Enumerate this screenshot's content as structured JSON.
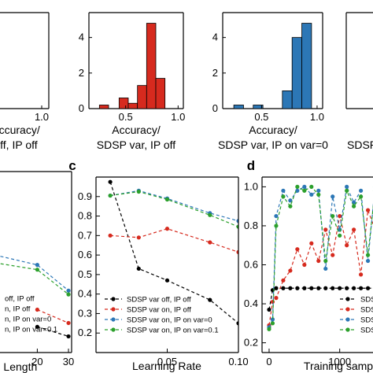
{
  "chart_data": [
    {
      "id": "hist1",
      "type": "bar",
      "xlabel_lines": [
        "Accuracy/",
        "off, IP off"
      ],
      "xticks": [
        "1.0"
      ],
      "bars": [],
      "ylim": [
        0,
        5
      ]
    },
    {
      "id": "hist2",
      "type": "bar",
      "color": "#d62a1e",
      "xlim": [
        0.15,
        1.05
      ],
      "ylim": [
        0,
        5.4
      ],
      "xticks": [
        {
          "v": 0.5,
          "label": "0.5"
        },
        {
          "v": 1.0,
          "label": "1.0"
        }
      ],
      "yticks": [
        {
          "v": 0,
          "label": "0"
        },
        {
          "v": 2,
          "label": "2"
        },
        {
          "v": 4,
          "label": "4"
        }
      ],
      "bin_width": 0.0875,
      "bars": [
        {
          "x0": 0.25,
          "count": 0.2
        },
        {
          "x0": 0.4375,
          "count": 0.6
        },
        {
          "x0": 0.525,
          "count": 0.3
        },
        {
          "x0": 0.6125,
          "count": 1.3
        },
        {
          "x0": 0.7,
          "count": 4.8
        },
        {
          "x0": 0.7875,
          "count": 1.7
        }
      ],
      "xlabel_lines": [
        "Accuracy/",
        "SDSP var, IP off"
      ]
    },
    {
      "id": "hist3",
      "type": "bar",
      "color": "#2c77b6",
      "xlim": [
        0.15,
        1.05
      ],
      "ylim": [
        0,
        5.4
      ],
      "xticks": [
        {
          "v": 0.5,
          "label": "0.5"
        },
        {
          "v": 1.0,
          "label": "1.0"
        }
      ],
      "yticks": [
        {
          "v": 0,
          "label": "0"
        },
        {
          "v": 2,
          "label": "2"
        },
        {
          "v": 4,
          "label": "4"
        }
      ],
      "bin_width": 0.0875,
      "bars": [
        {
          "x0": 0.25,
          "count": 0.2
        },
        {
          "x0": 0.425,
          "count": 0.2
        },
        {
          "x0": 0.6875,
          "count": 1.0
        },
        {
          "x0": 0.775,
          "count": 4.0
        },
        {
          "x0": 0.8625,
          "count": 4.8
        }
      ],
      "xlabel_lines": [
        "Accuracy/",
        "SDSP var, IP on var=0"
      ]
    },
    {
      "id": "hist4",
      "type": "bar",
      "xlabel_lines": [
        "SDSP"
      ]
    },
    {
      "id": "line_b",
      "type": "line",
      "xlabel": "e Length",
      "xlim": [
        3,
        31
      ],
      "ylim": [
        0.1,
        1.05
      ],
      "xticks": [
        {
          "v": 20,
          "label": "20"
        },
        {
          "v": 30,
          "label": "30"
        }
      ],
      "series": [
        {
          "name": "off, IP off",
          "color": "#000000",
          "x": [
            20,
            30
          ],
          "y": [
            0.235,
            0.185
          ]
        },
        {
          "name": "n, IP off",
          "color": "#d62a1e",
          "x": [
            20,
            30
          ],
          "y": [
            0.325,
            0.255
          ]
        },
        {
          "name": "n, IP on var=0",
          "color": "#2c77b6",
          "x": [
            3,
            20,
            30
          ],
          "y": [
            0.625,
            0.56,
            0.425
          ]
        },
        {
          "name": "n, IP on var=0.1",
          "color": "#2ca02c",
          "x": [
            3,
            20,
            30
          ],
          "y": [
            0.58,
            0.535,
            0.405
          ]
        }
      ]
    },
    {
      "id": "line_c",
      "type": "line",
      "panel_letter": "c",
      "xlabel": "Learning Rate",
      "xlim": [
        0.0,
        0.1
      ],
      "ylim": [
        0.1,
        1.0
      ],
      "xticks": [
        {
          "v": 0.05,
          "label": "0.05"
        },
        {
          "v": 0.1,
          "label": "0.10"
        }
      ],
      "yticks": [
        {
          "v": 0.2,
          "label": "0.2"
        },
        {
          "v": 0.3,
          "label": "0.3"
        },
        {
          "v": 0.4,
          "label": "0.4"
        },
        {
          "v": 0.5,
          "label": "0.5"
        },
        {
          "v": 0.6,
          "label": "0.6"
        },
        {
          "v": 0.7,
          "label": "0.7"
        },
        {
          "v": 0.8,
          "label": "0.8"
        },
        {
          "v": 0.9,
          "label": "0.9"
        }
      ],
      "series": [
        {
          "name": "SDSP var off, IP off",
          "color": "#000000",
          "x": [
            0.01,
            0.03,
            0.05,
            0.08,
            0.1
          ],
          "y": [
            0.975,
            0.53,
            0.47,
            0.37,
            0.25
          ]
        },
        {
          "name": "SDSP var on, IP off",
          "color": "#d62a1e",
          "x": [
            0.01,
            0.03,
            0.05,
            0.08,
            0.1
          ],
          "y": [
            0.7,
            0.69,
            0.735,
            0.665,
            0.615
          ]
        },
        {
          "name": "SDSP var on, IP on var=0",
          "color": "#2c77b6",
          "x": [
            0.01,
            0.03,
            0.05,
            0.08,
            0.1
          ],
          "y": [
            0.905,
            0.93,
            0.89,
            0.815,
            0.775
          ]
        },
        {
          "name": "SDSP var on, IP on var=0.1",
          "color": "#2ca02c",
          "x": [
            0.01,
            0.03,
            0.05,
            0.08,
            0.1
          ],
          "y": [
            0.905,
            0.925,
            0.885,
            0.805,
            0.745
          ]
        }
      ]
    },
    {
      "id": "line_d",
      "type": "line",
      "panel_letter": "d",
      "xlabel": "Training samp",
      "xlim": [
        -100,
        1650
      ],
      "ylim": [
        0.15,
        1.05
      ],
      "xticks": [
        {
          "v": 0,
          "label": "0"
        },
        {
          "v": 1000,
          "label": "1000"
        }
      ],
      "yticks": [
        {
          "v": 0.2,
          "label": "0.2"
        },
        {
          "v": 0.4,
          "label": "0.4"
        },
        {
          "v": 0.6,
          "label": "0.6"
        },
        {
          "v": 0.8,
          "label": "0.8"
        },
        {
          "v": 1.0,
          "label": "1.0"
        }
      ],
      "series": [
        {
          "name": "SDS",
          "color": "#000000",
          "x": [
            0,
            50,
            100,
            200,
            300,
            400,
            500,
            600,
            700,
            800,
            900,
            1000,
            1100,
            1200,
            1300,
            1400,
            1500,
            1600
          ],
          "y": [
            0.37,
            0.47,
            0.48,
            0.48,
            0.48,
            0.48,
            0.48,
            0.48,
            0.48,
            0.48,
            0.48,
            0.48,
            0.48,
            0.48,
            0.48,
            0.48,
            0.48,
            0.48
          ]
        },
        {
          "name": "SDS",
          "color": "#d62a1e",
          "x": [
            0,
            50,
            100,
            200,
            300,
            400,
            500,
            600,
            700,
            800,
            900,
            1000,
            1100,
            1200,
            1300,
            1400,
            1500,
            1600
          ],
          "y": [
            0.29,
            0.41,
            0.43,
            0.52,
            0.57,
            0.68,
            0.6,
            0.71,
            0.62,
            0.78,
            0.65,
            0.85,
            0.7,
            0.78,
            0.55,
            0.88,
            0.78,
            0.95
          ]
        },
        {
          "name": "SDS",
          "color": "#2c77b6",
          "x": [
            0,
            50,
            100,
            200,
            300,
            400,
            500,
            600,
            700,
            800,
            900,
            1000,
            1100,
            1200,
            1300,
            1400,
            1500,
            1600
          ],
          "y": [
            0.28,
            0.32,
            0.85,
            0.98,
            0.93,
            0.98,
            1.0,
            0.96,
            0.98,
            0.58,
            0.95,
            0.78,
            1.0,
            0.92,
            0.98,
            0.62,
            1.0,
            0.96
          ]
        },
        {
          "name": "SDS",
          "color": "#2ca02c",
          "x": [
            0,
            50,
            100,
            200,
            300,
            400,
            500,
            600,
            700,
            800,
            900,
            1000,
            1100,
            1200,
            1300,
            1400,
            1500,
            1600
          ],
          "y": [
            0.27,
            0.3,
            0.8,
            0.95,
            0.9,
            1.0,
            0.98,
            1.0,
            0.96,
            0.62,
            0.85,
            0.75,
            0.98,
            0.9,
            0.95,
            0.65,
            0.98,
            0.92
          ]
        }
      ]
    }
  ]
}
